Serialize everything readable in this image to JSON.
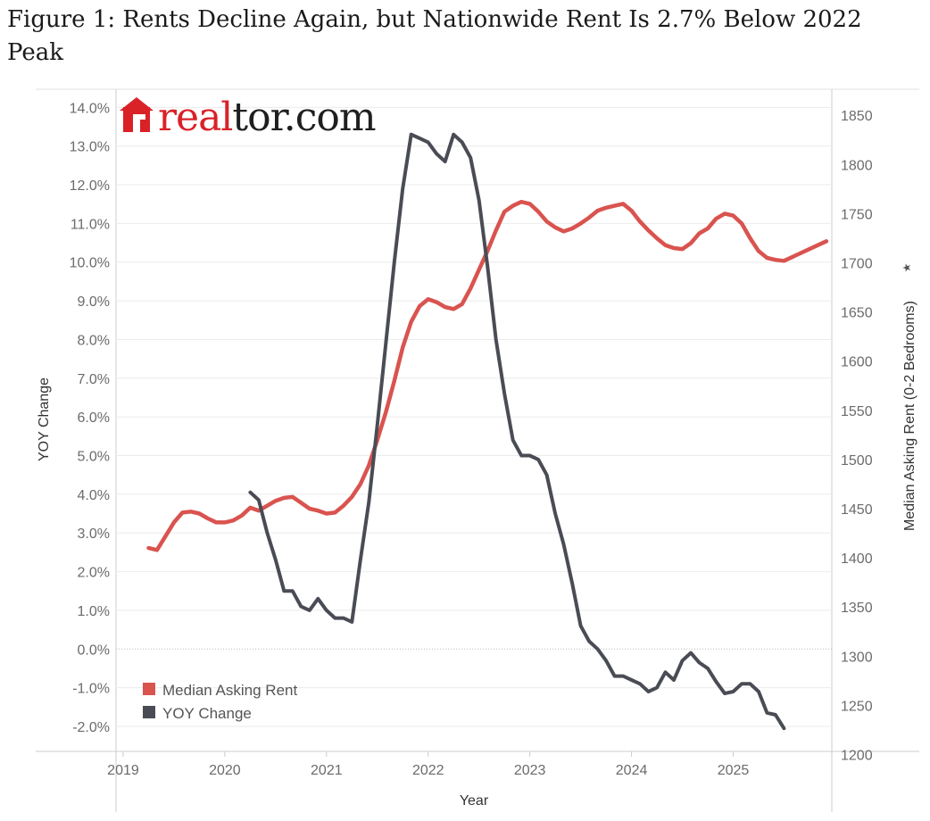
{
  "figure": {
    "title": "Figure 1: Rents Decline Again, but Nationwide Rent Is 2.7% Below 2022 Peak",
    "logo": "realtor.com"
  },
  "colors": {
    "rent": "#d9534f",
    "yoy": "#4a4c55",
    "grid": "#ebebeb",
    "axis": "#cccccc"
  },
  "chart_data": {
    "type": "line",
    "xlabel": "Year",
    "ylabel_left": "YOY Change",
    "ylabel_right": "Median Asking Rent (0-2 Bedrooms)",
    "right_axis_icon": "star-icon",
    "x_ticks": [
      "2019",
      "2020",
      "2021",
      "2022",
      "2023",
      "2024",
      "2025"
    ],
    "xlim": [
      2018.93,
      2025.97
    ],
    "ylim_left": [
      -2.6,
      14.1
    ],
    "ylim_right": [
      1205,
      1862
    ],
    "left_ticks": [
      "14.0%",
      "13.0%",
      "12.0%",
      "11.0%",
      "10.0%",
      "9.0%",
      "8.0%",
      "7.0%",
      "6.0%",
      "5.0%",
      "4.0%",
      "3.0%",
      "2.0%",
      "1.0%",
      "0.0%",
      "-1.0%",
      "-2.0%"
    ],
    "left_tick_values": [
      14,
      13,
      12,
      11,
      10,
      9,
      8,
      7,
      6,
      5,
      4,
      3,
      2,
      1,
      0,
      -1,
      -2
    ],
    "right_ticks": [
      "1850",
      "1800",
      "1750",
      "1700",
      "1650",
      "1600",
      "1550",
      "1500",
      "1450",
      "1400",
      "1350",
      "1300",
      "1250",
      "1200"
    ],
    "right_tick_values": [
      1850,
      1800,
      1750,
      1700,
      1650,
      1600,
      1550,
      1500,
      1450,
      1400,
      1350,
      1300,
      1250,
      1200
    ],
    "legend": [
      {
        "name": "Median Asking Rent",
        "key": "rent"
      },
      {
        "name": "YOY Change",
        "key": "yoy"
      }
    ],
    "series": [
      {
        "name": "Median Asking Rent",
        "axis": "right",
        "start": 2019.25,
        "step": 0.08333,
        "values": [
          1410,
          1408,
          1422,
          1436,
          1446,
          1447,
          1445,
          1440,
          1436,
          1436,
          1438,
          1443,
          1451,
          1448,
          1453,
          1458,
          1461,
          1462,
          1456,
          1450,
          1448,
          1445,
          1446,
          1453,
          1462,
          1475,
          1494,
          1520,
          1548,
          1580,
          1614,
          1640,
          1656,
          1663,
          1660,
          1655,
          1653,
          1658,
          1674,
          1693,
          1712,
          1733,
          1752,
          1758,
          1762,
          1760,
          1752,
          1742,
          1736,
          1732,
          1735,
          1740,
          1746,
          1753,
          1756,
          1758,
          1760,
          1753,
          1742,
          1733,
          1725,
          1718,
          1715,
          1714,
          1720,
          1730,
          1735,
          1745,
          1750,
          1748,
          1740,
          1725,
          1712,
          1705,
          1703,
          1702,
          1706,
          1710,
          1714,
          1718,
          1722
        ]
      },
      {
        "name": "YOY Change",
        "axis": "left",
        "start": 2020.25,
        "step": 0.08333,
        "values": [
          4.05,
          3.85,
          3.0,
          2.3,
          1.5,
          1.5,
          1.1,
          1.0,
          1.3,
          1.0,
          0.8,
          0.8,
          0.7,
          2.3,
          3.8,
          5.8,
          7.9,
          10.0,
          11.9,
          13.3,
          13.2,
          13.1,
          12.8,
          12.6,
          13.3,
          13.1,
          12.7,
          11.6,
          9.9,
          8.0,
          6.6,
          5.4,
          5.0,
          5.0,
          4.9,
          4.5,
          3.5,
          2.7,
          1.7,
          0.6,
          0.2,
          0.0,
          -0.3,
          -0.7,
          -0.7,
          -0.8,
          -0.9,
          -1.1,
          -1.0,
          -0.6,
          -0.8,
          -0.3,
          -0.1,
          -0.35,
          -0.5,
          -0.85,
          -1.15,
          -1.1,
          -0.9,
          -0.9,
          -1.1,
          -1.65,
          -1.7,
          -2.05
        ]
      }
    ]
  }
}
